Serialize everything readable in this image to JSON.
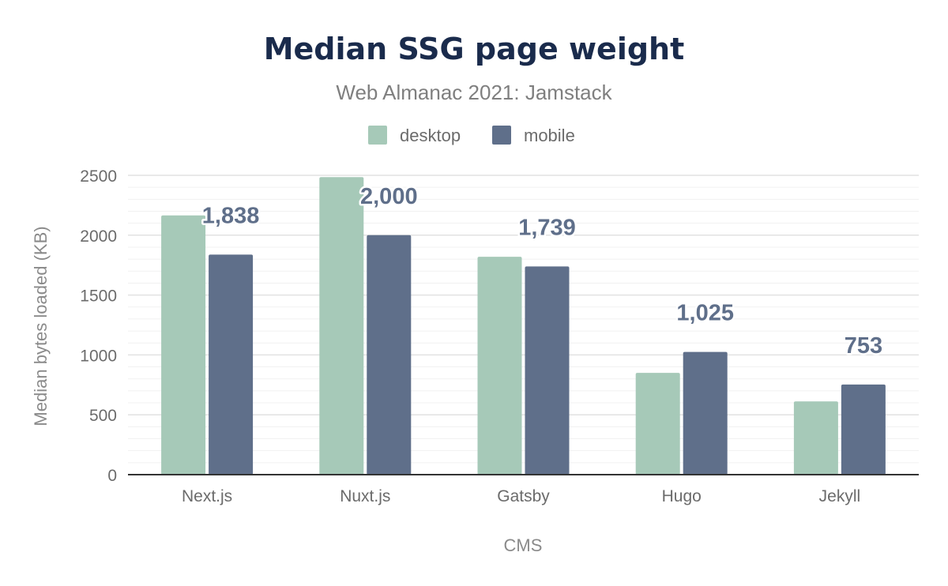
{
  "chart_data": {
    "type": "bar",
    "title": "Median SSG page weight",
    "subtitle": "Web Almanac 2021: Jamstack",
    "xlabel": "CMS",
    "ylabel": "Median bytes loaded (KB)",
    "categories": [
      "Next.js",
      "Nuxt.js",
      "Gatsby",
      "Hugo",
      "Jekyll"
    ],
    "series": [
      {
        "name": "desktop",
        "color": "#a6c9b8",
        "values": [
          2165,
          2485,
          1820,
          850,
          612
        ]
      },
      {
        "name": "mobile",
        "color": "#5f6f8a",
        "values": [
          1838,
          2000,
          1739,
          1025,
          753
        ],
        "labels": [
          "1,838",
          "2,000",
          "1,739",
          "1,025",
          "753"
        ]
      }
    ],
    "ylim": [
      0,
      2500
    ],
    "yticks": [
      0,
      500,
      1000,
      1500,
      2000,
      2500
    ],
    "grid": true,
    "legend": "top-center"
  }
}
